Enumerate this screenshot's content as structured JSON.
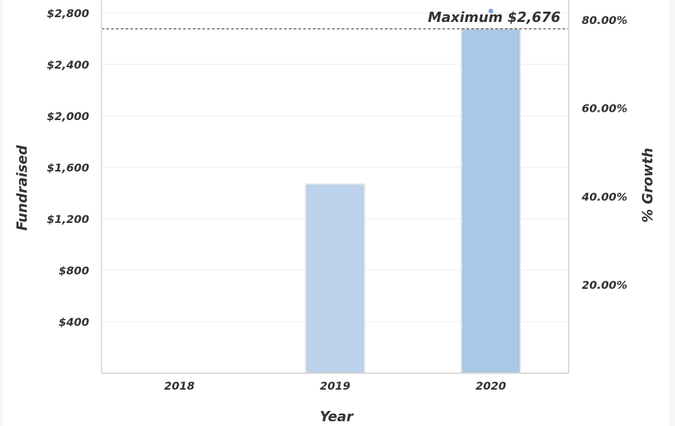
{
  "chart_data": {
    "type": "bar",
    "categories": [
      "2018",
      "2019",
      "2020"
    ],
    "series": [
      {
        "values": [
          0,
          1470,
          2676
        ],
        "colors": [
          "#bcd1ea",
          "#bcd1ea",
          "#a9c7e6"
        ]
      }
    ],
    "growth_values": [
      null,
      null,
      82.0
    ],
    "xlabel": "Year",
    "ylabel": "Fundraised",
    "y2label": "% Growth",
    "ylim": [
      0,
      2900
    ],
    "y2lim": [
      0,
      84.5
    ],
    "yticks": [
      400,
      800,
      1200,
      1600,
      2000,
      2400,
      2800
    ],
    "ytick_labels": [
      "$400",
      "$800",
      "$1,200",
      "$1,600",
      "$2,000",
      "$2,400",
      "$2,800"
    ],
    "y2ticks": [
      20,
      40,
      60,
      80
    ],
    "y2tick_labels": [
      "20.00%",
      "40.00%",
      "60.00%",
      "80.00%"
    ],
    "reference_line": {
      "value": 2676,
      "label": "Maximum $2,676"
    },
    "grid": true,
    "legend": "none"
  }
}
